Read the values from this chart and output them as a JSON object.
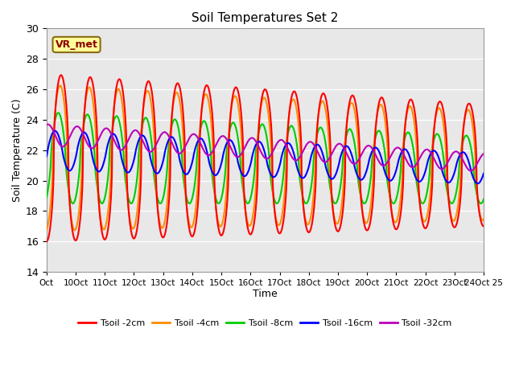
{
  "title": "Soil Temperatures Set 2",
  "xlabel": "Time",
  "ylabel": "Soil Temperature (C)",
  "ylim": [
    14,
    30
  ],
  "xlim": [
    0,
    15
  ],
  "xtick_labels": [
    "Oct",
    "10Oct",
    "11Oct",
    "12Oct",
    "13Oct",
    "14Oct",
    "15Oct",
    "16Oct",
    "17Oct",
    "18Oct",
    "19Oct",
    "20Oct",
    "21Oct",
    "22Oct",
    "23Oct",
    "24Oct 25"
  ],
  "annotation_text": "VR_met",
  "colors": {
    "tsoil_2cm": "#FF0000",
    "tsoil_4cm": "#FF8C00",
    "tsoil_8cm": "#00CC00",
    "tsoil_16cm": "#0000FF",
    "tsoil_32cm": "#BB00BB"
  },
  "legend_labels": [
    "Tsoil -2cm",
    "Tsoil -4cm",
    "Tsoil -8cm",
    "Tsoil -16cm",
    "Tsoil -32cm"
  ],
  "bg_color": "#E8E8E8",
  "linewidth": 1.5
}
